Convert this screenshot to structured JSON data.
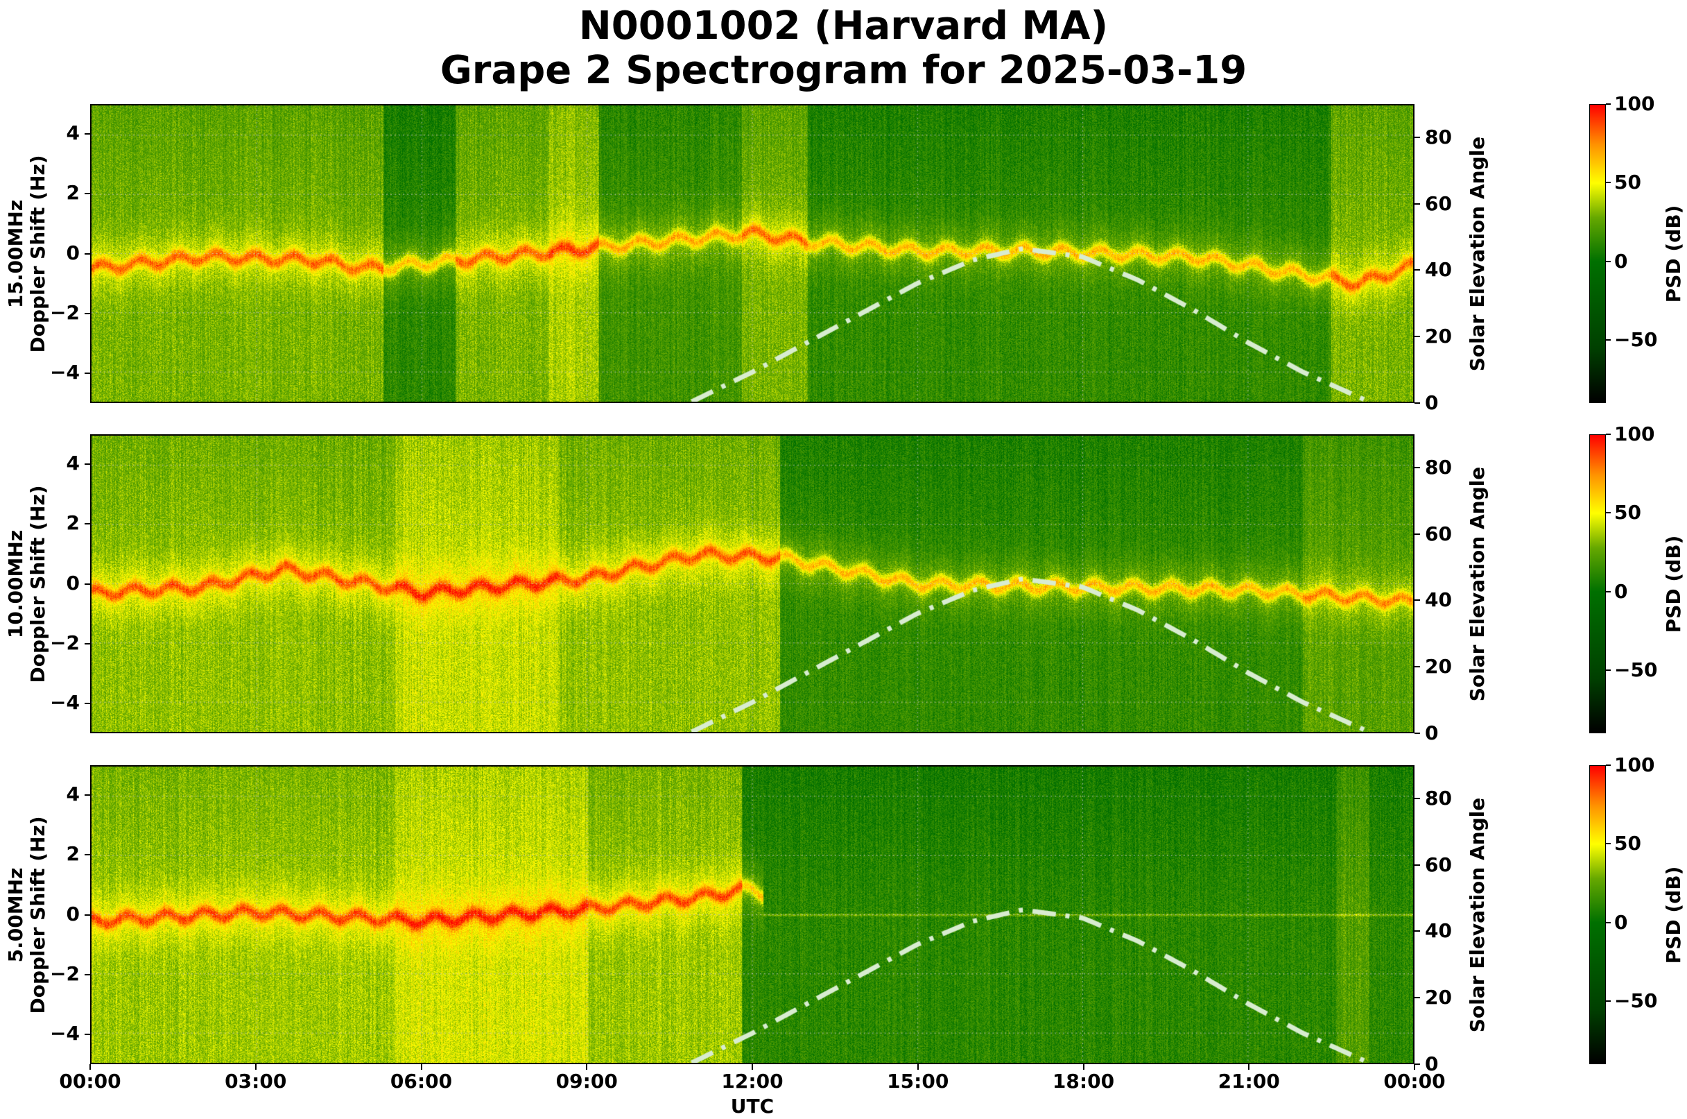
{
  "title": {
    "line1": "N0001002 (Harvard MA)",
    "line2": "Grape 2 Spectrogram for 2025-03-19"
  },
  "x_axis": {
    "label": "UTC",
    "ticks": [
      "00:00",
      "03:00",
      "06:00",
      "09:00",
      "12:00",
      "15:00",
      "18:00",
      "21:00",
      "00:00"
    ]
  },
  "left_axis": {
    "label": "Doppler Shift (Hz)",
    "ticks": [
      "4",
      "2",
      "0",
      "−2",
      "−4"
    ],
    "range": [
      -5,
      5
    ]
  },
  "right_axis": {
    "label": "Solar Elevation Angle",
    "ticks": [
      "80",
      "60",
      "40",
      "20",
      "0"
    ],
    "range": [
      0,
      90
    ]
  },
  "colorbar": {
    "label": "PSD (dB)",
    "ticks": [
      "100",
      "50",
      "0",
      "−50"
    ],
    "range": [
      -90,
      100
    ],
    "colors": [
      "#000000",
      "#004000",
      "#007000",
      "#66a800",
      "#ffff00",
      "#ff9000",
      "#ff0000"
    ]
  },
  "panels": [
    {
      "freq_label": "15.00MHz",
      "id": "15mhz"
    },
    {
      "freq_label": "10.00MHz",
      "id": "10mhz"
    },
    {
      "freq_label": "5.00MHz",
      "id": "5mhz"
    }
  ],
  "chart_data": {
    "type": "heatmap",
    "title": "N0001002 (Harvard MA) Grape 2 Spectrogram for 2025-03-19",
    "xlabel": "UTC",
    "ylabel": "Doppler Shift (Hz)",
    "ylabel_right": "Solar Elevation Angle",
    "colorbar_label": "PSD (dB)",
    "x_range": [
      "00:00",
      "24:00"
    ],
    "x_ticks": [
      "00:00",
      "03:00",
      "06:00",
      "09:00",
      "12:00",
      "15:00",
      "18:00",
      "21:00",
      "00:00"
    ],
    "y_range": [
      -5,
      5
    ],
    "y_ticks": [
      -4,
      -2,
      0,
      2,
      4
    ],
    "y_right_range": [
      0,
      90
    ],
    "y_right_ticks": [
      0,
      20,
      40,
      60,
      80
    ],
    "colorbar_range": [
      -90,
      100
    ],
    "colorbar_ticks": [
      -50,
      0,
      50,
      100
    ],
    "grid": true,
    "subplots": [
      {
        "frequency": "15.00MHz",
        "description": "Carrier trace near 0 Hz all day; broadband green/yellow noise with dark-green quiet periods around 05:30-06:30 and 09:00-12:00; strong trace 12:00-24:00 near 0 Hz",
        "carrier_trace_hz": {
          "00:00": -0.5,
          "02:00": -0.1,
          "04:00": -0.2,
          "05:00": -0.5,
          "12:00": 0.7,
          "13:00": 0.4,
          "15:00": 0.1,
          "17:00": 0.1,
          "20:00": -0.1,
          "23:00": -1.0,
          "24:00": -0.4
        }
      },
      {
        "frequency": "10.00MHz",
        "description": "Bright carrier trace around 0 Hz overnight (yellow/orange); daytime 12:00-22:00 mostly dark green with thin trace near 0 Hz",
        "carrier_trace_hz": {
          "00:00": -0.3,
          "02:00": -0.1,
          "03:30": 0.5,
          "06:00": -0.3,
          "09:00": 0.2,
          "11:00": 1.0,
          "12:30": 0.9,
          "15:00": 0.0,
          "21:00": -0.2,
          "24:00": -0.6
        }
      },
      {
        "frequency": "5.00MHz",
        "description": "Strong yellow/orange signal 00:00-12:00 with carrier near 0 Hz rising to ~+0.8 Hz before 12:00; after 12:00 signal fades to green (no propagation) with a faint line at 0 Hz",
        "carrier_trace_hz": {
          "00:00": -0.2,
          "03:00": 0.1,
          "06:00": -0.2,
          "09:00": 0.2,
          "11:00": 0.6,
          "12:00": 0.9,
          "13:00": 0.0
        }
      }
    ],
    "solar_elevation_curve": {
      "style": "dash-dot, light green-white",
      "x_hours": [
        10.9,
        12,
        13,
        14,
        15,
        16,
        16.9,
        18,
        19,
        20,
        21,
        22,
        23.2
      ],
      "elevation_deg": [
        0,
        9,
        18,
        27,
        36,
        43,
        46.5,
        44,
        37,
        28,
        18,
        9,
        0
      ]
    }
  }
}
